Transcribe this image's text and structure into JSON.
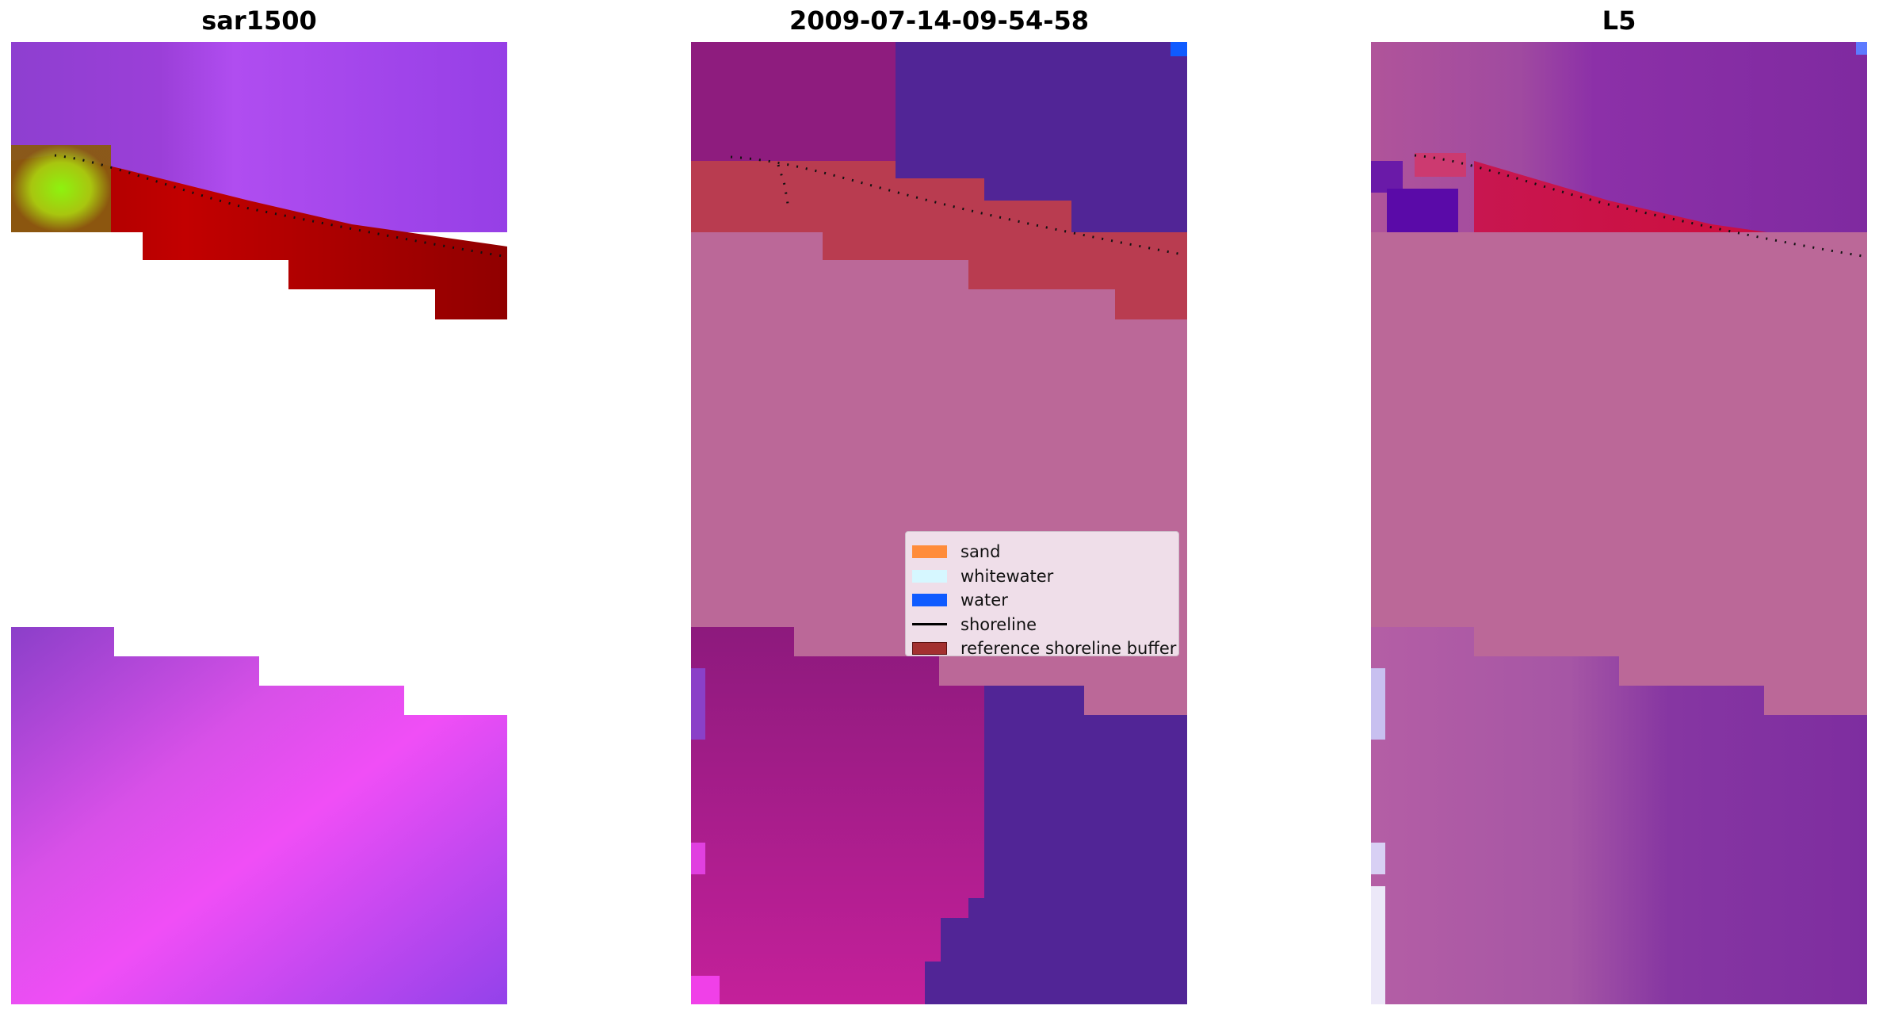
{
  "panels": [
    {
      "title": "sar1500"
    },
    {
      "title": "2009-07-14-09-54-58"
    },
    {
      "title": "L5"
    }
  ],
  "legend": {
    "items": [
      {
        "label": "sand",
        "kind": "patch",
        "color": "#ff8c3a",
        "icon": "sand-swatch"
      },
      {
        "label": "whitewater",
        "kind": "patch",
        "color": "#d6f7ff",
        "icon": "whitewater-swatch"
      },
      {
        "label": "water",
        "kind": "patch",
        "color": "#0f5bff",
        "icon": "water-swatch"
      },
      {
        "label": "shoreline",
        "kind": "line",
        "color": "#000000",
        "icon": "shoreline-line"
      },
      {
        "label": "reference shoreline buffer",
        "kind": "patch",
        "color": "#a33030",
        "icon": "buffer-swatch"
      }
    ]
  },
  "colors": {
    "buffer_overlay": "#b93c50",
    "classified_water": "#512596",
    "classified_sand_mask": "#bb6898",
    "sar_purple": "#9a40e6",
    "sar_magenta": "#ff47f0",
    "sar_red": "#b00000",
    "sar_green": "#88ff10"
  }
}
